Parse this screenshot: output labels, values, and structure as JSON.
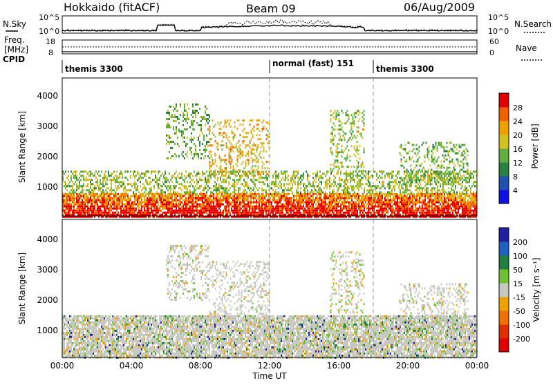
{
  "header": {
    "title": "Hokkaido (fitACF)",
    "beam": "Beam 09",
    "date": "06/Aug/2009"
  },
  "summary_panels": {
    "nsky_label": "N.Sky",
    "nsearch_label": "N.Search",
    "noise_ticks": [
      "10^5",
      "10^0"
    ],
    "freq_label_1": "Freq.",
    "freq_label_2": "[MHz]",
    "freq_ticks": [
      "18",
      "8"
    ],
    "nave_label": "Nave",
    "nave_ticks": [
      "60",
      "0"
    ],
    "cpid_label": "CPID",
    "cpid_segments": [
      {
        "label": "themis 3300",
        "start_hour": 0,
        "end_hour": 12
      },
      {
        "label": "normal (fast) 151",
        "start_hour": 12,
        "end_hour": 18
      },
      {
        "label": "themis 3300",
        "start_hour": 18,
        "end_hour": 24
      }
    ]
  },
  "axes": {
    "ylabel": "Slant Range [km]",
    "xlabel": "Time UT",
    "yticks": [
      "1000",
      "2000",
      "3000",
      "4000"
    ],
    "xticks": [
      "00:00",
      "04:00",
      "08:00",
      "12:00",
      "16:00",
      "20:00",
      "00:00"
    ]
  },
  "colorbars": {
    "power": {
      "label": "Power [dB]",
      "ticks": [
        "4",
        "8",
        "12",
        "16",
        "20",
        "24",
        "28"
      ],
      "colors": [
        "#1010e0",
        "#2050b0",
        "#2c8040",
        "#60b040",
        "#d0c020",
        "#f0a000",
        "#f06000",
        "#e00000"
      ]
    },
    "velocity": {
      "label": "Velocity [m s⁻¹]",
      "ticks": [
        "200",
        "100",
        "50",
        "15",
        "-15",
        "-50",
        "-100",
        "-200"
      ],
      "colors": [
        "#2020a0",
        "#2060c0",
        "#208040",
        "#70c030",
        "#c8c8c0",
        "#f0a000",
        "#f07000",
        "#e03000",
        "#e00000"
      ]
    }
  },
  "chart_data": [
    {
      "type": "heatmap",
      "title": "",
      "xlabel": "Time UT",
      "ylabel": "Slant Range [km]",
      "xlim": [
        0,
        24
      ],
      "ylim": [
        180,
        4500
      ],
      "colorbar_label": "Power [dB]",
      "colorbar_range": [
        0,
        32
      ],
      "markers": [
        12,
        18
      ],
      "regions": [
        {
          "name": "near-range band",
          "x": [
            0,
            24
          ],
          "y": [
            180,
            900
          ],
          "value": 26
        },
        {
          "name": "mid band",
          "x": [
            0,
            24
          ],
          "y": [
            900,
            1600
          ],
          "value": 14
        },
        {
          "name": "morning echo",
          "x": [
            6,
            8.5
          ],
          "y": [
            2000,
            3700
          ],
          "value": 12
        },
        {
          "name": "noon echo",
          "x": [
            8.5,
            12
          ],
          "y": [
            1500,
            3200
          ],
          "value": 18
        },
        {
          "name": "afternoon echo",
          "x": [
            15.5,
            17.5
          ],
          "y": [
            1600,
            3500
          ],
          "value": 14
        },
        {
          "name": "evening echo",
          "x": [
            19.5,
            23.5
          ],
          "y": [
            1200,
            2500
          ],
          "value": 12
        }
      ]
    },
    {
      "type": "heatmap",
      "title": "",
      "xlabel": "Time UT",
      "ylabel": "Slant Range [km]",
      "xlim": [
        0,
        24
      ],
      "ylim": [
        180,
        4500
      ],
      "colorbar_label": "Velocity [m s⁻¹]",
      "colorbar_range": [
        -200,
        200
      ],
      "markers": [
        12,
        18
      ],
      "regions": [
        {
          "name": "near-range band",
          "x": [
            0,
            24
          ],
          "y": [
            180,
            1500
          ],
          "value": 0
        },
        {
          "name": "morning echo",
          "x": [
            6,
            8.5
          ],
          "y": [
            2000,
            3700
          ],
          "value": 0
        },
        {
          "name": "noon echo",
          "x": [
            8.5,
            12
          ],
          "y": [
            1500,
            3200
          ],
          "value": 0
        },
        {
          "name": "afternoon echo",
          "x": [
            15.5,
            17.5
          ],
          "y": [
            1600,
            3500
          ],
          "value": 30
        },
        {
          "name": "evening echo",
          "x": [
            19.5,
            23.5
          ],
          "y": [
            1200,
            2500
          ],
          "value": 0
        }
      ]
    }
  ]
}
